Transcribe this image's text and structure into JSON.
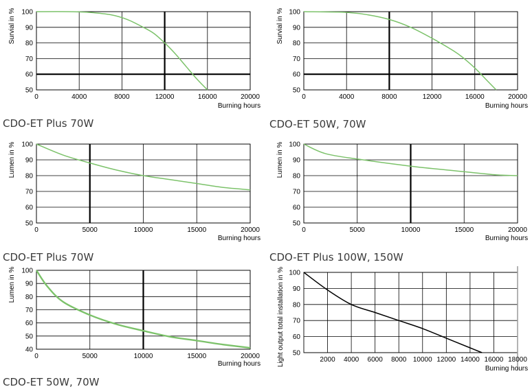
{
  "captions": [
    "CDO-ET Plus 70W",
    "CDO-ET 50W, 70W",
    "CDO-ET Plus 70W",
    "CDO-ET Plus 100W, 150W",
    "CDO-ET 50W, 70W"
  ],
  "colors": {
    "curve_green": "#7cc26a",
    "curve_black": "#000000",
    "grid": "#000000"
  },
  "chart_data": [
    {
      "type": "line",
      "ylabel": "Survial in %",
      "xlabel": "Burning hours",
      "xlim": [
        0,
        20000
      ],
      "ylim": [
        50,
        100
      ],
      "xticks": [
        0,
        4000,
        8000,
        12000,
        16000,
        20000
      ],
      "xtick_labels": [
        "0",
        "4000",
        "8000",
        "12000",
        "16000",
        "20000"
      ],
      "yticks": [
        50,
        60,
        70,
        80,
        90,
        100
      ],
      "ytick_labels": [
        "50",
        "60",
        "70",
        "80",
        "90",
        "100"
      ],
      "bold_x": [
        12000
      ],
      "bold_y": [
        60
      ],
      "series": [
        {
          "name": "survival",
          "color": "curve_green",
          "x": [
            0,
            3000,
            5000,
            7000,
            8500,
            10000,
            11000,
            12000,
            13000,
            14000,
            15000,
            16000
          ],
          "y": [
            100,
            100,
            99.5,
            98,
            95,
            90,
            86,
            80,
            73,
            65,
            57,
            50
          ]
        }
      ]
    },
    {
      "type": "line",
      "ylabel": "Survial in %",
      "xlabel": "Burning hours",
      "xlim": [
        0,
        20000
      ],
      "ylim": [
        50,
        100
      ],
      "xticks": [
        0,
        4000,
        8000,
        12000,
        16000,
        20000
      ],
      "xtick_labels": [
        "0",
        "4000",
        "8000",
        "12000",
        "16000",
        "20000"
      ],
      "yticks": [
        50,
        60,
        70,
        80,
        90,
        100
      ],
      "ytick_labels": [
        "50",
        "60",
        "70",
        "80",
        "90",
        "100"
      ],
      "bold_x": [
        8000
      ],
      "bold_y": [
        60
      ],
      "series": [
        {
          "name": "survival",
          "color": "curve_green",
          "x": [
            0,
            4000,
            6000,
            8000,
            10000,
            12000,
            14000,
            15000,
            16000,
            17000,
            18000
          ],
          "y": [
            100,
            99.5,
            98,
            95,
            90,
            83,
            75,
            70,
            64,
            57,
            50
          ]
        }
      ]
    },
    {
      "type": "line",
      "ylabel": "Lumen in %",
      "xlabel": "Burning hours",
      "xlim": [
        0,
        20000
      ],
      "ylim": [
        50,
        100
      ],
      "xticks": [
        0,
        5000,
        10000,
        15000,
        20000
      ],
      "xtick_labels": [
        "0",
        "5000",
        "10000",
        "15000",
        "20000"
      ],
      "yticks": [
        50,
        60,
        70,
        80,
        90,
        100
      ],
      "ytick_labels": [
        "50",
        "60",
        "70",
        "80",
        "90",
        "100"
      ],
      "bold_x": [
        5000
      ],
      "bold_y": [],
      "series": [
        {
          "name": "lumen",
          "color": "curve_green",
          "x": [
            0,
            2500,
            5000,
            7500,
            10000,
            12500,
            15000,
            17500,
            20000
          ],
          "y": [
            100,
            93,
            88,
            83.5,
            80,
            77.5,
            75,
            72.5,
            71
          ]
        }
      ]
    },
    {
      "type": "line",
      "ylabel": "Lumen in %",
      "xlabel": "Burning hours",
      "xlim": [
        0,
        20000
      ],
      "ylim": [
        50,
        100
      ],
      "xticks": [
        0,
        5000,
        10000,
        15000,
        20000
      ],
      "xtick_labels": [
        "0",
        "5000",
        "10000",
        "15000",
        "20000"
      ],
      "yticks": [
        50,
        60,
        70,
        80,
        90,
        100
      ],
      "ytick_labels": [
        "50",
        "60",
        "70",
        "80",
        "90",
        "100"
      ],
      "bold_x": [
        10000
      ],
      "bold_y": [],
      "series": [
        {
          "name": "lumen",
          "color": "curve_green",
          "x": [
            0,
            2000,
            5000,
            10000,
            15000,
            18000,
            20000
          ],
          "y": [
            100,
            94,
            90.5,
            86,
            82.5,
            80.5,
            80
          ]
        }
      ]
    },
    {
      "type": "line",
      "ylabel": "Lumen in %",
      "xlabel": "Burning hours",
      "xlim": [
        0,
        20000
      ],
      "ylim": [
        40,
        100
      ],
      "xticks": [
        0,
        5000,
        10000,
        15000,
        20000
      ],
      "xtick_labels": [
        "0",
        "5000",
        "10000",
        "15000",
        "20000"
      ],
      "yticks": [
        40,
        50,
        60,
        70,
        80,
        90,
        100
      ],
      "ytick_labels": [
        "40",
        "50",
        "60",
        "70",
        "80",
        "90",
        "100"
      ],
      "bold_x": [
        10000
      ],
      "bold_y": [],
      "series": [
        {
          "name": "lumen",
          "color": "curve_green",
          "x": [
            0,
            1000,
            2500,
            5000,
            7500,
            10000,
            12500,
            15000,
            17500,
            20000
          ],
          "y": [
            100,
            88,
            76,
            66,
            59,
            54,
            49.5,
            46.5,
            43.5,
            41
          ]
        }
      ]
    },
    {
      "type": "line",
      "ylabel": "Light output total installation in %",
      "xlabel": "Burning hours",
      "xlim": [
        0,
        18000
      ],
      "ylim": [
        50,
        100
      ],
      "xticks": [
        2000,
        4000,
        6000,
        8000,
        10000,
        12000,
        14000,
        16000,
        18000
      ],
      "xtick_labels": [
        "2000",
        "4000",
        "6000",
        "8000",
        "10000",
        "12000",
        "14000",
        "16000",
        "18000"
      ],
      "yticks": [
        50,
        60,
        70,
        80,
        90,
        100
      ],
      "ytick_labels": [
        "50",
        "60",
        "70",
        "80",
        "90",
        "100"
      ],
      "bold_x": [],
      "bold_y": [],
      "series": [
        {
          "name": "light output",
          "color": "curve_black",
          "x": [
            0,
            2000,
            4000,
            6000,
            8000,
            10000,
            12000,
            14000,
            15000
          ],
          "y": [
            100,
            89,
            80,
            75,
            70,
            65,
            59,
            53,
            50
          ]
        }
      ]
    }
  ]
}
